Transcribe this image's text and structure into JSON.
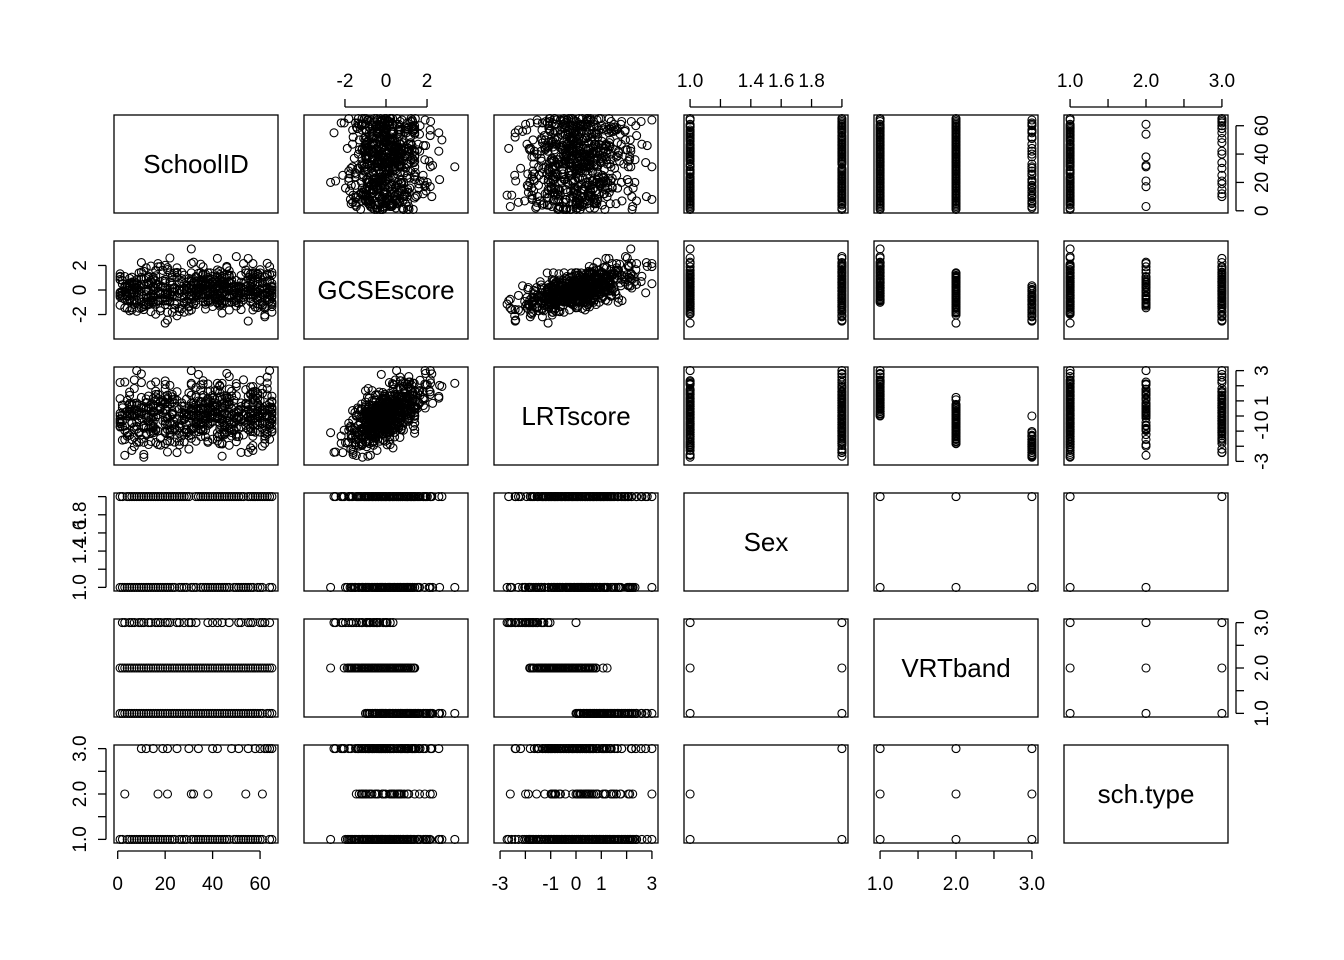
{
  "chart_data": {
    "type": "scatter",
    "subtype": "pairs-matrix",
    "title": "",
    "variables": [
      {
        "name": "SchoolID",
        "range": [
          1,
          65
        ],
        "ticks": [
          0,
          20,
          40,
          60
        ],
        "tick_labels": [
          "0",
          "20",
          "40",
          "60"
        ],
        "kind": "continuous"
      },
      {
        "name": "GCSEscore",
        "range": [
          -3.7,
          3.7
        ],
        "ticks": [
          -2,
          0,
          2
        ],
        "tick_labels": [
          "-2",
          "0",
          "2"
        ],
        "kind": "continuous"
      },
      {
        "name": "LRTscore",
        "range": [
          -3.0,
          3.0
        ],
        "ticks": [
          -3,
          -2,
          -1,
          0,
          1,
          2,
          3
        ],
        "tick_labels": [
          "-3",
          "",
          "-1",
          "0",
          "1",
          "",
          "3"
        ],
        "kind": "continuous"
      },
      {
        "name": "Sex",
        "range": [
          1,
          2
        ],
        "ticks": [
          1.0,
          1.2,
          1.4,
          1.6,
          1.8,
          2.0
        ],
        "tick_labels": [
          "1.0",
          "",
          "1.4",
          "1.6",
          "1.8",
          ""
        ],
        "kind": "discrete",
        "levels": [
          1,
          2
        ]
      },
      {
        "name": "VRTband",
        "range": [
          1,
          3
        ],
        "ticks": [
          1.0,
          1.5,
          2.0,
          2.5,
          3.0
        ],
        "tick_labels": [
          "1.0",
          "",
          "2.0",
          "",
          "3.0"
        ],
        "kind": "discrete",
        "levels": [
          1,
          2,
          3
        ]
      },
      {
        "name": "sch.type",
        "range": [
          1,
          3
        ],
        "ticks": [
          1.0,
          1.5,
          2.0,
          2.5,
          3.0
        ],
        "tick_labels": [
          "1.0",
          "",
          "2.0",
          "",
          "3.0"
        ],
        "kind": "discrete",
        "levels": [
          1,
          2,
          3
        ]
      }
    ],
    "axis_placement": {
      "top_axes": [
        1,
        3,
        5
      ],
      "bottom_axes": [
        0,
        2,
        4
      ],
      "left_axes": [
        1,
        3,
        5
      ],
      "right_axes": [
        0,
        2,
        4
      ]
    },
    "relationships": {
      "GCSEscore_vs_LRTscore": "strong positive correlation (~0.6)",
      "VRTband_vs_GCSEscore": "band 1 spans about -1.0 to 3.7; band 2 about -2.7 to 1.4; band 3 about -3.5 to 0.9",
      "VRTband_vs_LRTscore": "band 1 spans about -1.4 to 3.0; band 2 about -3.0 to 2.0; band 3 about -3.0 to 1.0",
      "schtype_by_school": {
        "schools_type_2": [
          3,
          17,
          21,
          31,
          32,
          38,
          48,
          54,
          61
        ],
        "schools_type_3": [
          10,
          12,
          15,
          19,
          21,
          25,
          30,
          34,
          40,
          42,
          48,
          51,
          55,
          58,
          60,
          62,
          63,
          64,
          65
        ]
      },
      "sex_by_schtype": "sex 1 in type 1 and 2 schools; sex 2 in type 1 and 3 schools",
      "sex_vs_vrtband": "all combinations present",
      "vrtband_vs_schtype": "all combinations present"
    },
    "grid": false,
    "legend": "none"
  }
}
